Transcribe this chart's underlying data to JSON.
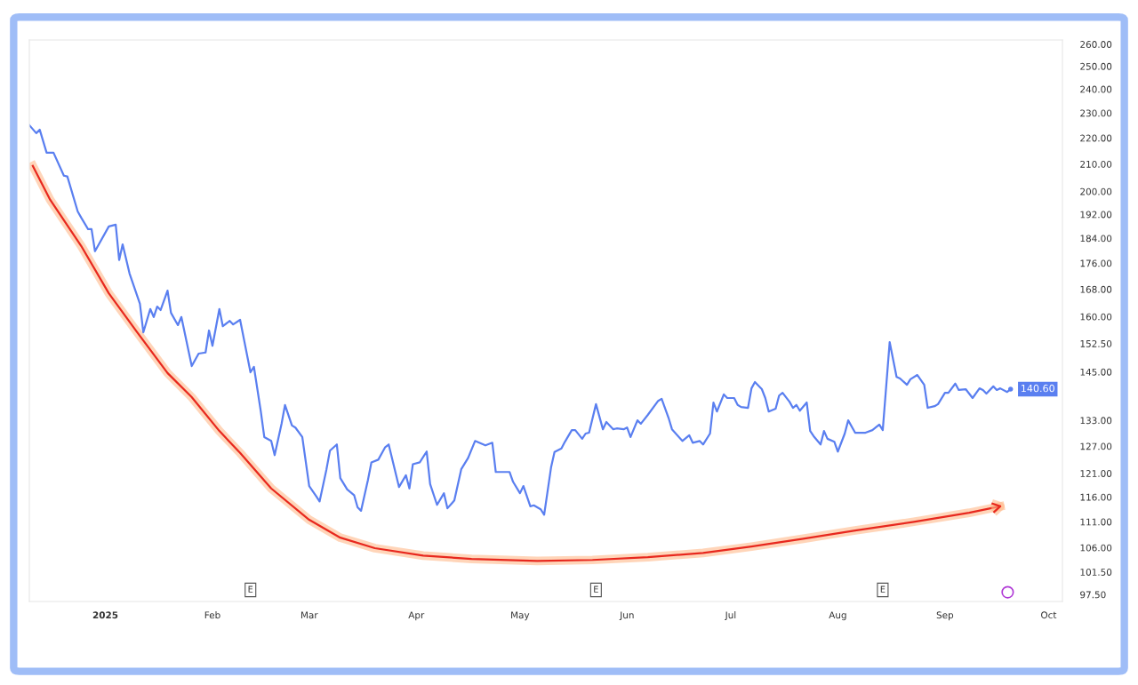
{
  "chart_data": {
    "type": "line",
    "xlim": [
      "2024-12-10",
      "2025-10-05"
    ],
    "xticks": [
      {
        "value": "2025-01-01",
        "label": "2025"
      },
      {
        "value": "2025-02-01",
        "label": "Feb"
      },
      {
        "value": "2025-03-01",
        "label": "Mar"
      },
      {
        "value": "2025-04-01",
        "label": "Apr"
      },
      {
        "value": "2025-05-01",
        "label": "May"
      },
      {
        "value": "2025-06-01",
        "label": "Jun"
      },
      {
        "value": "2025-07-01",
        "label": "Jul"
      },
      {
        "value": "2025-08-01",
        "label": "Aug"
      },
      {
        "value": "2025-09-01",
        "label": "Sep"
      },
      {
        "value": "2025-10-01",
        "label": "Oct"
      }
    ],
    "ylim": [
      96.3,
      262
    ],
    "log": true,
    "yticks": [
      {
        "value": 260,
        "label": "260.00"
      },
      {
        "value": 250,
        "label": "250.00"
      },
      {
        "value": 240,
        "label": "240.00"
      },
      {
        "value": 230,
        "label": "230.00"
      },
      {
        "value": 220,
        "label": "220.00"
      },
      {
        "value": 210,
        "label": "210.00"
      },
      {
        "value": 200,
        "label": "200.00"
      },
      {
        "value": 192,
        "label": "192.00"
      },
      {
        "value": 184,
        "label": "184.00"
      },
      {
        "value": 176,
        "label": "176.00"
      },
      {
        "value": 168,
        "label": "168.00"
      },
      {
        "value": 160,
        "label": "160.00"
      },
      {
        "value": 152.5,
        "label": "152.50"
      },
      {
        "value": 145,
        "label": "145.00"
      },
      {
        "value": 133,
        "label": "133.00"
      },
      {
        "value": 127,
        "label": "127.00"
      },
      {
        "value": 121,
        "label": "121.00"
      },
      {
        "value": 116,
        "label": "116.00"
      },
      {
        "value": 111,
        "label": "111.00"
      },
      {
        "value": 106,
        "label": "106.00"
      },
      {
        "value": 101.5,
        "label": "101.50"
      },
      {
        "value": 97.5,
        "label": "97.50"
      }
    ],
    "grid": false,
    "annotations": [
      {
        "text": "E",
        "x": "2025-02-12",
        "y": 98.3
      },
      {
        "text": "E",
        "x": "2025-05-23",
        "y": 98.3
      },
      {
        "text": "E",
        "x": "2025-08-14",
        "y": 98.3
      }
    ],
    "series": [
      {
        "color": "#5a7ff0",
        "x": [
          "2024-12-10",
          "2024-12-12",
          "2024-12-13",
          "2024-12-15",
          "2024-12-17",
          "2024-12-20",
          "2024-12-21",
          "2024-12-24",
          "2024-12-25",
          "2024-12-27",
          "2024-12-28",
          "2024-12-29",
          "2025-01-02",
          "2025-01-04",
          "2025-01-05",
          "2025-01-06",
          "2025-01-08",
          "2025-01-11",
          "2025-01-12",
          "2025-01-14",
          "2025-01-15",
          "2025-01-16",
          "2025-01-17",
          "2025-01-19",
          "2025-01-20",
          "2025-01-22",
          "2025-01-23",
          "2025-01-26",
          "2025-01-28",
          "2025-01-30",
          "2025-01-31",
          "2025-02-01",
          "2025-02-03",
          "2025-02-04",
          "2025-02-06",
          "2025-02-07",
          "2025-02-09",
          "2025-02-12",
          "2025-02-13",
          "2025-02-15",
          "2025-02-16",
          "2025-02-18",
          "2025-02-19",
          "2025-02-21",
          "2025-02-22",
          "2025-02-24",
          "2025-02-25",
          "2025-02-27",
          "2025-03-01",
          "2025-03-03",
          "2025-03-04",
          "2025-03-06",
          "2025-03-07",
          "2025-03-09",
          "2025-03-10",
          "2025-03-12",
          "2025-03-14",
          "2025-03-15",
          "2025-03-16",
          "2025-03-18",
          "2025-03-19",
          "2025-03-21",
          "2025-03-23",
          "2025-03-24",
          "2025-03-27",
          "2025-03-29",
          "2025-03-30",
          "2025-03-31",
          "2025-04-02",
          "2025-04-04",
          "2025-04-05",
          "2025-04-07",
          "2025-04-09",
          "2025-04-10",
          "2025-04-12",
          "2025-04-14",
          "2025-04-16",
          "2025-04-18",
          "2025-04-21",
          "2025-04-23",
          "2025-04-24",
          "2025-04-28",
          "2025-04-29",
          "2025-05-01",
          "2025-05-02",
          "2025-05-04",
          "2025-05-05",
          "2025-05-07",
          "2025-05-08",
          "2025-05-10",
          "2025-05-11",
          "2025-05-13",
          "2025-05-14",
          "2025-05-16",
          "2025-05-17",
          "2025-05-19",
          "2025-05-20",
          "2025-05-21",
          "2025-05-23",
          "2025-05-25",
          "2025-05-26",
          "2025-05-28",
          "2025-05-29",
          "2025-05-31",
          "2025-06-01",
          "2025-06-02",
          "2025-06-04",
          "2025-06-05",
          "2025-06-07",
          "2025-06-10",
          "2025-06-11",
          "2025-06-13",
          "2025-06-14",
          "2025-06-17",
          "2025-06-19",
          "2025-06-20",
          "2025-06-22",
          "2025-06-23",
          "2025-06-25",
          "2025-06-26",
          "2025-06-27",
          "2025-06-29",
          "2025-06-30",
          "2025-07-02",
          "2025-07-03",
          "2025-07-04",
          "2025-07-06",
          "2025-07-07",
          "2025-07-08",
          "2025-07-10",
          "2025-07-11",
          "2025-07-12",
          "2025-07-14",
          "2025-07-15",
          "2025-07-16",
          "2025-07-18",
          "2025-07-19",
          "2025-07-20",
          "2025-07-21",
          "2025-07-23",
          "2025-07-24",
          "2025-07-25",
          "2025-07-27",
          "2025-07-28",
          "2025-07-29",
          "2025-07-31",
          "2025-08-01",
          "2025-08-03",
          "2025-08-04",
          "2025-08-06",
          "2025-08-09",
          "2025-08-11",
          "2025-08-13",
          "2025-08-14",
          "2025-08-16",
          "2025-08-18",
          "2025-08-19",
          "2025-08-21",
          "2025-08-22",
          "2025-08-24",
          "2025-08-26",
          "2025-08-27",
          "2025-08-29",
          "2025-08-30",
          "2025-09-01",
          "2025-09-02",
          "2025-09-04",
          "2025-09-05",
          "2025-09-07",
          "2025-09-08",
          "2025-09-09",
          "2025-09-11",
          "2025-09-12",
          "2025-09-13",
          "2025-09-15",
          "2025-09-16",
          "2025-09-17",
          "2025-09-19",
          "2025-09-20"
        ],
        "values": [
          225.1,
          221.9,
          223.3,
          214.3,
          214.3,
          205.7,
          205.4,
          193.0,
          190.9,
          187.0,
          187.0,
          179.8,
          187.9,
          188.5,
          177.0,
          182.0,
          172.8,
          163.7,
          155.6,
          162.2,
          159.9,
          162.9,
          161.9,
          167.6,
          161.1,
          157.6,
          159.9,
          146.5,
          149.8,
          150.1,
          156.1,
          151.9,
          162.2,
          157.3,
          158.8,
          157.8,
          159.1,
          144.9,
          146.3,
          135.1,
          129.1,
          128.2,
          125.0,
          132.2,
          136.7,
          131.8,
          131.3,
          129.1,
          118.3,
          116.2,
          115.1,
          121.9,
          126.0,
          127.4,
          120.0,
          117.6,
          116.4,
          113.9,
          113.2,
          119.6,
          123.4,
          124.0,
          126.8,
          127.4,
          118.1,
          120.6,
          117.8,
          123.0,
          123.4,
          125.8,
          118.7,
          114.4,
          116.8,
          113.7,
          115.3,
          121.9,
          124.4,
          128.2,
          127.2,
          127.8,
          121.3,
          121.3,
          119.2,
          116.8,
          118.3,
          114.1,
          114.3,
          113.5,
          112.4,
          122.3,
          125.7,
          126.5,
          128.0,
          130.7,
          130.7,
          128.7,
          129.9,
          130.1,
          136.9,
          130.9,
          132.6,
          130.9,
          131.1,
          130.9,
          131.3,
          129.1,
          133.0,
          132.2,
          134.3,
          137.7,
          138.2,
          133.6,
          130.9,
          128.2,
          129.5,
          127.8,
          128.2,
          127.4,
          129.9,
          137.3,
          135.1,
          139.3,
          138.4,
          138.4,
          136.7,
          136.2,
          136.0,
          140.8,
          142.4,
          140.6,
          138.4,
          135.1,
          135.8,
          139.0,
          139.7,
          137.5,
          136.0,
          136.7,
          135.3,
          137.3,
          130.5,
          129.3,
          127.4,
          130.5,
          128.7,
          128.0,
          125.8,
          129.9,
          133.0,
          130.1,
          130.1,
          130.7,
          132.0,
          130.7,
          152.9,
          143.7,
          143.3,
          141.7,
          143.1,
          144.2,
          141.7,
          136.0,
          136.4,
          136.9,
          139.7,
          139.7,
          142.0,
          140.4,
          140.6,
          139.5,
          138.4,
          140.8,
          140.4,
          139.5,
          141.3,
          140.4,
          140.8,
          139.9,
          140.6
        ],
        "value_labels": [
          null,
          null,
          null,
          null,
          null,
          null,
          null,
          null,
          null,
          null,
          null,
          null,
          null,
          null,
          null,
          null,
          null,
          null,
          null,
          null,
          null,
          null,
          null,
          null,
          null,
          null,
          null,
          null,
          null,
          null,
          null,
          null,
          null,
          null,
          null,
          null,
          null,
          null,
          null,
          null,
          null,
          null,
          null,
          null,
          null,
          null,
          null,
          null,
          null,
          null,
          null,
          null,
          null,
          null,
          null,
          null,
          null,
          null,
          null,
          null,
          null,
          null,
          null,
          null,
          null,
          null,
          null,
          null,
          null,
          null,
          null,
          null,
          null,
          null,
          null,
          null,
          null,
          null,
          null,
          null,
          null,
          null,
          null,
          null,
          null,
          null,
          null,
          null,
          null,
          null,
          null,
          null,
          null,
          null,
          null,
          null,
          null,
          null,
          null,
          null,
          null,
          null,
          null,
          null,
          null,
          null,
          null,
          null,
          null,
          null,
          null,
          null,
          null,
          null,
          null,
          null,
          null,
          null,
          null,
          null,
          null,
          null,
          null,
          null,
          null,
          null,
          null,
          null,
          null,
          null,
          null,
          null,
          null,
          null,
          null,
          null,
          null,
          null,
          null,
          null,
          null,
          null,
          null,
          null,
          null,
          null,
          null,
          null,
          null,
          null,
          null,
          null,
          null,
          null,
          null,
          null,
          null,
          null,
          null,
          null,
          null,
          null,
          null,
          null,
          null,
          null,
          null,
          null,
          null,
          null,
          null,
          null,
          null,
          null,
          null,
          null,
          null,
          null,
          "140.60"
        ]
      },
      {
        "type": "line",
        "color": "#e8281e",
        "x": [
          "2024-12-11",
          "2024-12-16",
          "2024-12-25",
          "2025-01-02",
          "2025-01-10",
          "2025-01-19",
          "2025-01-26",
          "2025-02-03",
          "2025-02-09",
          "2025-02-18",
          "2025-03-01",
          "2025-03-10",
          "2025-03-20",
          "2025-04-03",
          "2025-04-17",
          "2025-05-06",
          "2025-05-22",
          "2025-06-07",
          "2025-06-23",
          "2025-07-07",
          "2025-07-22",
          "2025-08-06",
          "2025-08-23",
          "2025-09-08",
          "2025-09-17"
        ],
        "values": [
          209.3,
          197.1,
          181.5,
          166.8,
          155.9,
          144.7,
          138.6,
          130.5,
          125.5,
          117.8,
          111.4,
          107.9,
          105.9,
          104.5,
          103.9,
          103.5,
          103.7,
          104.2,
          105.0,
          106.2,
          107.7,
          109.3,
          111.0,
          112.8,
          114.1
        ]
      }
    ]
  }
}
